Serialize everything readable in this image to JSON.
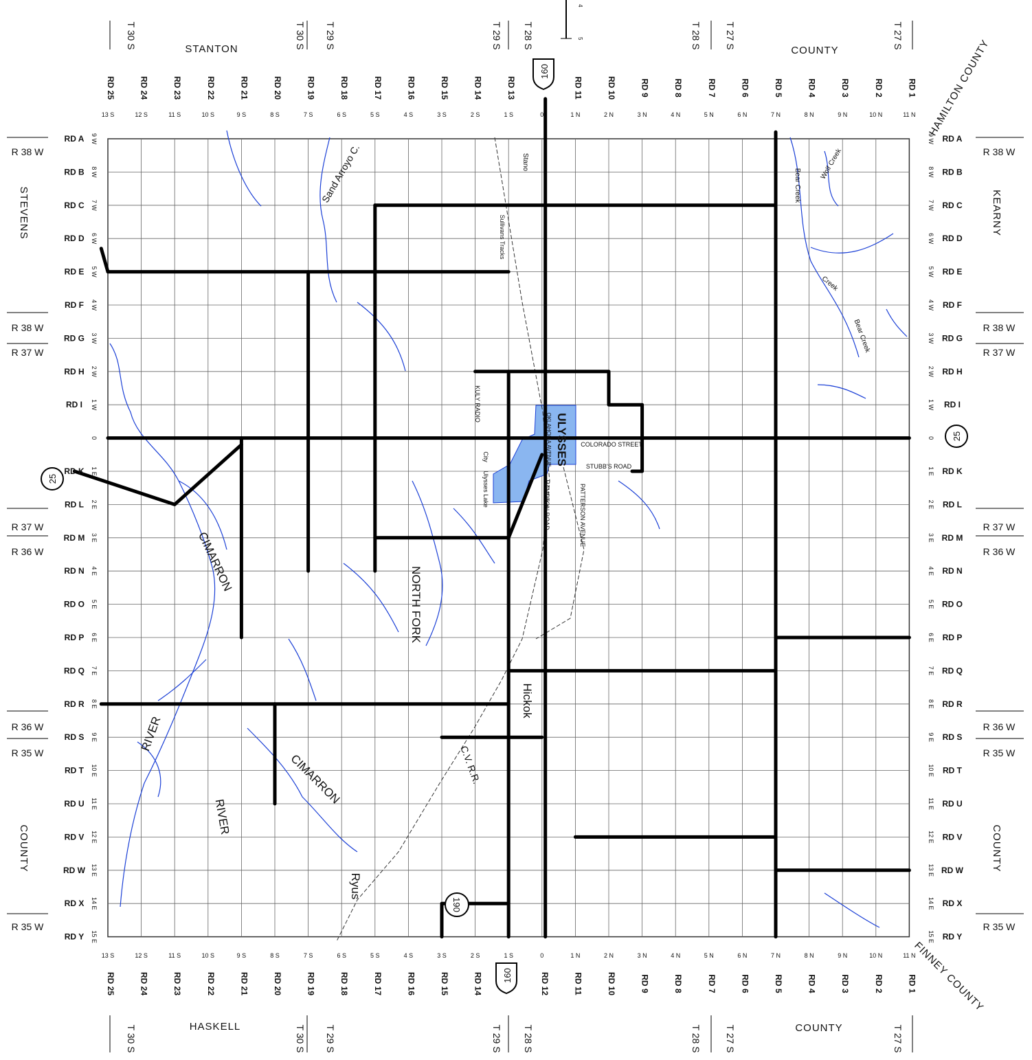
{
  "counties": {
    "north": [
      "STANTON",
      "COUNTY"
    ],
    "south": [
      "HASKELL",
      "COUNTY"
    ],
    "west": [
      "STEVENS",
      "COUNTY"
    ],
    "east": [
      "KEARNY",
      "COUNTY"
    ],
    "northeast": "HAMILTON COUNTY",
    "southeast": "FINNEY COUNTY"
  },
  "township_labels_top": [
    "T 30 S",
    "T 30 S",
    "T 29 S",
    "T 29 S",
    "T 28 S",
    "T 28 S",
    "T 27 S",
    "T 27 S"
  ],
  "range_labels_left": [
    "R 38 W",
    "R 38 W",
    "R 37 W",
    "R 37 W",
    "R 36 W",
    "R 36 W",
    "R 35 W",
    "R 35 W"
  ],
  "range_labels_right": [
    "R 38 W",
    "R 38 W",
    "R 37 W",
    "R 37 W",
    "R 36 W",
    "R 36 W",
    "R 35 W",
    "R 35 W"
  ],
  "ns_roads": [
    "RD 25",
    "RD 24",
    "RD 23",
    "RD 22",
    "RD 21",
    "RD 20",
    "RD 19",
    "RD 18",
    "RD 17",
    "RD 16",
    "RD 15",
    "RD 14",
    "RD 13",
    "",
    "RD 11",
    "RD 10",
    "RD 9",
    "RD 8",
    "RD 7",
    "RD 6",
    "RD 5",
    "RD 4",
    "RD 3",
    "RD 2",
    "RD 1"
  ],
  "ns_roads_bottom": [
    "RD 25",
    "RD 24",
    "RD 23",
    "RD 22",
    "RD 21",
    "RD 20",
    "RD 19",
    "RD 18",
    "RD 17",
    "RD 16",
    "RD 15",
    "RD 14",
    "",
    "RD 12",
    "RD 11",
    "RD 10",
    "RD 9",
    "RD 8",
    "RD 7",
    "RD 6",
    "RD 5",
    "RD 4",
    "RD 3",
    "RD 2",
    "RD 1"
  ],
  "ns_codes": [
    "13 S",
    "12 S",
    "11 S",
    "10 S",
    "9 S",
    "8 S",
    "7 S",
    "6 S",
    "5 S",
    "4 S",
    "3 S",
    "2 S",
    "1 S",
    "0",
    "1 N",
    "2 N",
    "3 N",
    "4 N",
    "5 N",
    "6 N",
    "7 N",
    "8 N",
    "9 N",
    "10 N",
    "11 N"
  ],
  "ew_roads": [
    "RD A",
    "RD B",
    "RD C",
    "RD D",
    "RD E",
    "RD F",
    "RD G",
    "RD H",
    "RD I",
    "",
    "RD K",
    "RD L",
    "RD M",
    "RD N",
    "RD O",
    "RD P",
    "RD Q",
    "RD R",
    "RD S",
    "RD T",
    "RD U",
    "RD V",
    "RD W",
    "RD X",
    "RD Y"
  ],
  "ew_codes": [
    "9 W",
    "8 W",
    "7 W",
    "6 W",
    "5 W",
    "4 W",
    "3 W",
    "2 W",
    "1 W",
    "0",
    "1 E",
    "2 E",
    "3 E",
    "4 E",
    "5 E",
    "6 E",
    "7 E",
    "8 E",
    "9 E",
    "10 E",
    "11 E",
    "12 E",
    "13 E",
    "14 E",
    "15 E"
  ],
  "highways": {
    "us_north": "160",
    "us_south": "160",
    "ks_west": "25",
    "ks_east": "25",
    "ks_south": "190"
  },
  "places": {
    "city": "ULYSSES",
    "hickok": "Hickok",
    "ryus": "Ryus",
    "ulysses_lake": "Ulysses Lake",
    "city_lake": "City",
    "stano": "Stano",
    "sullivans_tracks": "Sullivans Tracks",
    "kuly_radio": "KULY RADIO"
  },
  "streets": {
    "colorado": "COLORADO STREET",
    "stubbs": "STUBB'S ROAD",
    "hampton": "HAMPTON ROAD",
    "patterson": "PATTERSON AVENUE",
    "oklahoma": "OKLAHOMA AVENUE"
  },
  "water": {
    "cimarron_1": "CIMARRON",
    "cimarron_2": "CIMARRON",
    "river_1": "RIVER",
    "river_2": "RIVER",
    "north_fork": "NORTH FORK",
    "sand_arroyo": "Sand Arroyo C.",
    "bear_creek_1": "Bear Creek",
    "bear_creek_2": "Bear Creek",
    "wolf_creek": "Wolf Creek",
    "creek": "Creek"
  },
  "railroads": {
    "cvrr": "C.V. R.R."
  },
  "scale_marks": [
    "4",
    "5"
  ],
  "colors": {
    "road": "#000000",
    "river": "#1a3fd6",
    "city": "#8ab6f0",
    "grid": "#555555"
  }
}
